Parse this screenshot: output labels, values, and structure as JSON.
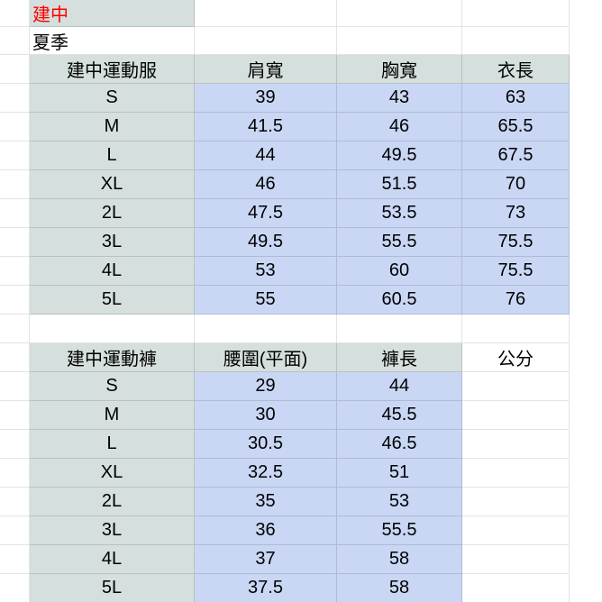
{
  "labels": {
    "school": "建中",
    "season": "夏季"
  },
  "colors": {
    "label_fill": "#d5dfdd",
    "value_fill": "#c9d7f5",
    "school_text": "#ff0000",
    "gridline": "#e2e3e5"
  },
  "tables": [
    {
      "title": "建中運動服",
      "columns": [
        "肩寬",
        "胸寬",
        "衣長"
      ],
      "unit_label": "",
      "rows": [
        {
          "size": "S",
          "values": [
            "39",
            "43",
            "63"
          ]
        },
        {
          "size": "M",
          "values": [
            "41.5",
            "46",
            "65.5"
          ]
        },
        {
          "size": "L",
          "values": [
            "44",
            "49.5",
            "67.5"
          ]
        },
        {
          "size": "XL",
          "values": [
            "46",
            "51.5",
            "70"
          ]
        },
        {
          "size": "2L",
          "values": [
            "47.5",
            "53.5",
            "73"
          ]
        },
        {
          "size": "3L",
          "values": [
            "49.5",
            "55.5",
            "75.5"
          ]
        },
        {
          "size": "4L",
          "values": [
            "53",
            "60",
            "75.5"
          ]
        },
        {
          "size": "5L",
          "values": [
            "55",
            "60.5",
            "76"
          ]
        }
      ]
    },
    {
      "title": "建中運動褲",
      "columns": [
        "腰圍(平面)",
        "褲長"
      ],
      "unit_label": "公分",
      "rows": [
        {
          "size": "S",
          "values": [
            "29",
            "44"
          ]
        },
        {
          "size": "M",
          "values": [
            "30",
            "45.5"
          ]
        },
        {
          "size": "L",
          "values": [
            "30.5",
            "46.5"
          ]
        },
        {
          "size": "XL",
          "values": [
            "32.5",
            "51"
          ]
        },
        {
          "size": "2L",
          "values": [
            "35",
            "53"
          ]
        },
        {
          "size": "3L",
          "values": [
            "36",
            "55.5"
          ]
        },
        {
          "size": "4L",
          "values": [
            "37",
            "58"
          ]
        },
        {
          "size": "5L",
          "values": [
            "37.5",
            "58"
          ]
        }
      ]
    }
  ]
}
